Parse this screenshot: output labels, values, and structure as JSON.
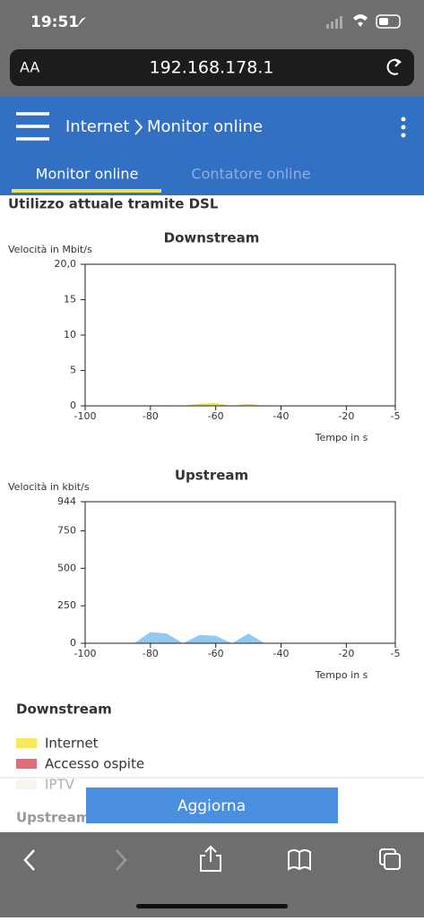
{
  "status_bar": {
    "time": "19:51"
  },
  "browser": {
    "text_size": "AA",
    "url": "192.168.178.1"
  },
  "header": {
    "breadcrumb": [
      "Internet",
      "Monitor online"
    ]
  },
  "tabs": [
    {
      "label": "Monitor online",
      "active": true
    },
    {
      "label": "Contatore online",
      "active": false
    }
  ],
  "section_title": "Utilizzo attuale tramite DSL",
  "chart_data": [
    {
      "type": "area",
      "title": "Downstream",
      "y_label": "Velocità in Mbit/s",
      "x_label": "Tempo in s",
      "x": [
        -100,
        -90,
        -85,
        -80,
        -75,
        -70,
        -65,
        -60,
        -55,
        -50,
        -45,
        -40,
        -30,
        -20,
        -10,
        -5
      ],
      "xlim": [
        -100,
        -5
      ],
      "xticks": [
        -100,
        -80,
        -60,
        -40,
        -20,
        -5
      ],
      "ylim": [
        0,
        20
      ],
      "yticks": [
        0,
        5,
        10,
        15,
        {
          "value": 20,
          "label": "20,0"
        }
      ],
      "series": [
        {
          "name": "Internet",
          "color": "#f2e04a",
          "values": [
            0,
            0,
            0,
            0,
            0.1,
            0,
            0.3,
            0.4,
            0,
            0.3,
            0,
            0,
            0,
            0,
            0,
            0
          ]
        }
      ]
    },
    {
      "type": "area",
      "title": "Upstream",
      "y_label": "Velocità in kbit/s",
      "x_label": "Tempo in s",
      "x": [
        -100,
        -90,
        -85,
        -80,
        -75,
        -70,
        -65,
        -60,
        -55,
        -50,
        -45,
        -40,
        -30,
        -20,
        -10,
        -5
      ],
      "xlim": [
        -100,
        -5
      ],
      "xticks": [
        -100,
        -80,
        -60,
        -40,
        -20,
        -5
      ],
      "ylim": [
        0,
        944
      ],
      "yticks": [
        0,
        250,
        500,
        750,
        944
      ],
      "series": [
        {
          "name": "Internet",
          "color": "#93c9ee",
          "values": [
            0,
            0,
            0,
            75,
            65,
            0,
            55,
            50,
            0,
            65,
            0,
            0,
            0,
            0,
            0,
            0
          ]
        }
      ]
    }
  ],
  "legend": {
    "title": "Downstream",
    "items": [
      {
        "name": "Internet",
        "color": "#f7e95e"
      },
      {
        "name": "Accesso ospite",
        "color": "#e06c78"
      },
      {
        "name": "IPTV",
        "color": "#ece6d2"
      }
    ]
  },
  "next_section": "Upstream",
  "button": "Aggiorna"
}
